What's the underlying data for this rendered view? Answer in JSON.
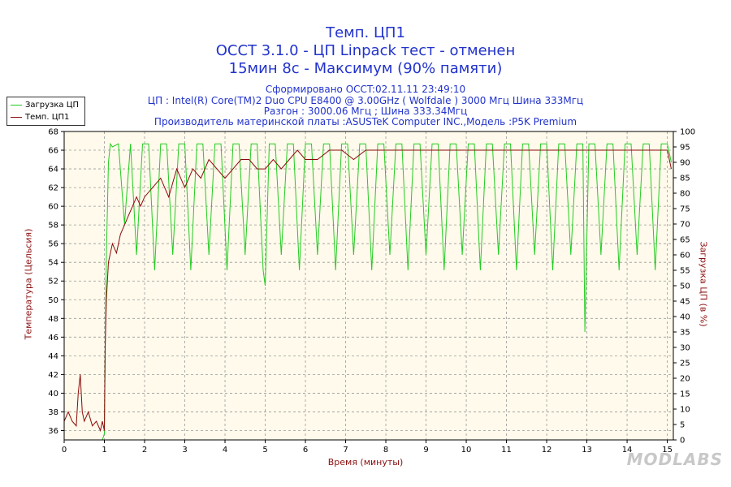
{
  "titles": {
    "line1": "Темп. ЦП1",
    "line2": "OCCT 3.1.0 - ЦП Linpack тест - отменен",
    "line3": "15мин 8с - Максимум (90% памяти)",
    "info1": "Сформировано OCCT:02.11.11 23:49:10",
    "info2": "ЦП : Intel(R) Core(TM)2 Duo CPU E8400 @ 3.00GHz ( Wolfdale ) 3000 Мгц Шина 333Мгц",
    "info3": "Разгон : 3000.06 Мгц ; Шина 333.34Мгц",
    "info4": "Производитель материнской платы :ASUSTeK Computer INC.,Модель :P5K Premium"
  },
  "watermark": "MODLABS",
  "chart_data": {
    "type": "line",
    "xlabel": "Время (минуты)",
    "ylabel": "Температура (Цельсия)",
    "y2label": "Загрузка ЦП (в %)",
    "xlim": [
      0,
      15.15
    ],
    "ylim": [
      35,
      68
    ],
    "y2lim": [
      0,
      100
    ],
    "x_ticks": [
      0,
      1,
      2,
      3,
      4,
      5,
      6,
      7,
      8,
      9,
      10,
      11,
      12,
      13,
      14,
      15
    ],
    "y_ticks": [
      36,
      38,
      40,
      42,
      44,
      46,
      48,
      50,
      52,
      54,
      56,
      58,
      60,
      62,
      64,
      66,
      68
    ],
    "y2_ticks": [
      0,
      5,
      10,
      15,
      20,
      25,
      30,
      35,
      40,
      45,
      50,
      55,
      60,
      65,
      70,
      75,
      80,
      85,
      90,
      95,
      100
    ],
    "grid": true,
    "legend": "top-left",
    "series": [
      {
        "name": "Загрузка ЦП",
        "axis": "right",
        "color": "#22cc22",
        "x": [
          0,
          0.95,
          1.0,
          1.02,
          1.05,
          1.1,
          1.15,
          1.2,
          1.35,
          1.5,
          1.65,
          1.8,
          1.95,
          2.1,
          2.25,
          2.4,
          2.55,
          2.7,
          2.85,
          3.0,
          3.15,
          3.3,
          3.45,
          3.6,
          3.75,
          3.9,
          4.05,
          4.2,
          4.35,
          4.5,
          4.65,
          4.8,
          4.95,
          5.0,
          5.1,
          5.25,
          5.4,
          5.55,
          5.7,
          5.85,
          6.0,
          6.15,
          6.3,
          6.45,
          6.6,
          6.75,
          6.9,
          7.05,
          7.2,
          7.35,
          7.5,
          7.65,
          7.8,
          7.95,
          8.1,
          8.25,
          8.4,
          8.55,
          8.7,
          8.85,
          9.0,
          9.15,
          9.3,
          9.45,
          9.6,
          9.75,
          9.9,
          10.05,
          10.2,
          10.35,
          10.5,
          10.65,
          10.8,
          10.95,
          11.1,
          11.25,
          11.4,
          11.55,
          11.7,
          11.85,
          12.0,
          12.15,
          12.3,
          12.45,
          12.6,
          12.75,
          12.9,
          12.95,
          13.05,
          13.2,
          13.35,
          13.5,
          13.65,
          13.8,
          13.95,
          14.1,
          14.25,
          14.4,
          14.55,
          14.7,
          14.85,
          15.0,
          15.1
        ],
        "values": [
          0,
          0,
          2,
          30,
          60,
          90,
          96,
          95,
          96,
          70,
          96,
          60,
          96,
          96,
          55,
          96,
          96,
          60,
          96,
          96,
          55,
          96,
          96,
          60,
          96,
          96,
          55,
          96,
          96,
          60,
          96,
          96,
          55,
          50,
          96,
          96,
          60,
          96,
          96,
          55,
          96,
          96,
          60,
          96,
          96,
          55,
          96,
          96,
          60,
          96,
          96,
          55,
          96,
          96,
          60,
          96,
          96,
          55,
          96,
          96,
          60,
          96,
          96,
          55,
          96,
          96,
          60,
          96,
          96,
          55,
          96,
          96,
          60,
          96,
          96,
          55,
          96,
          96,
          60,
          96,
          96,
          55,
          96,
          96,
          60,
          96,
          96,
          35,
          96,
          96,
          60,
          96,
          96,
          55,
          96,
          96,
          60,
          96,
          96,
          55,
          96,
          96,
          90
        ]
      },
      {
        "name": "Темп. ЦП1",
        "axis": "left",
        "color": "#8b0a0a",
        "x": [
          0,
          0.1,
          0.2,
          0.3,
          0.35,
          0.4,
          0.45,
          0.5,
          0.6,
          0.7,
          0.8,
          0.9,
          0.95,
          1.0,
          1.02,
          1.05,
          1.1,
          1.2,
          1.3,
          1.4,
          1.5,
          1.6,
          1.7,
          1.8,
          1.9,
          2.0,
          2.2,
          2.4,
          2.6,
          2.8,
          3.0,
          3.2,
          3.4,
          3.6,
          3.8,
          4.0,
          4.2,
          4.4,
          4.6,
          4.8,
          5.0,
          5.2,
          5.4,
          5.6,
          5.8,
          6.0,
          6.3,
          6.6,
          6.9,
          7.2,
          7.5,
          7.8,
          8.1,
          8.4,
          8.7,
          9.0,
          9.3,
          9.6,
          9.9,
          10.2,
          10.5,
          10.8,
          11.1,
          11.4,
          11.7,
          12.0,
          12.3,
          12.6,
          12.9,
          13.2,
          13.5,
          13.8,
          14.1,
          14.4,
          14.7,
          15.0,
          15.1
        ],
        "values": [
          37,
          38,
          37,
          36.5,
          40,
          42,
          38,
          37,
          38,
          36.5,
          37,
          36,
          37,
          36,
          45,
          50,
          54,
          56,
          55,
          57,
          58,
          59,
          60,
          61,
          60,
          61,
          62,
          63,
          61,
          64,
          62,
          64,
          63,
          65,
          64,
          63,
          64,
          65,
          65,
          64,
          64,
          65,
          64,
          65,
          66,
          65,
          65,
          66,
          66,
          65,
          66,
          66,
          66,
          66,
          66,
          66,
          66,
          66,
          66,
          66,
          66,
          66,
          66,
          66,
          66,
          66,
          66,
          66,
          66,
          66,
          66,
          66,
          66,
          66,
          66,
          66,
          64
        ]
      }
    ]
  }
}
